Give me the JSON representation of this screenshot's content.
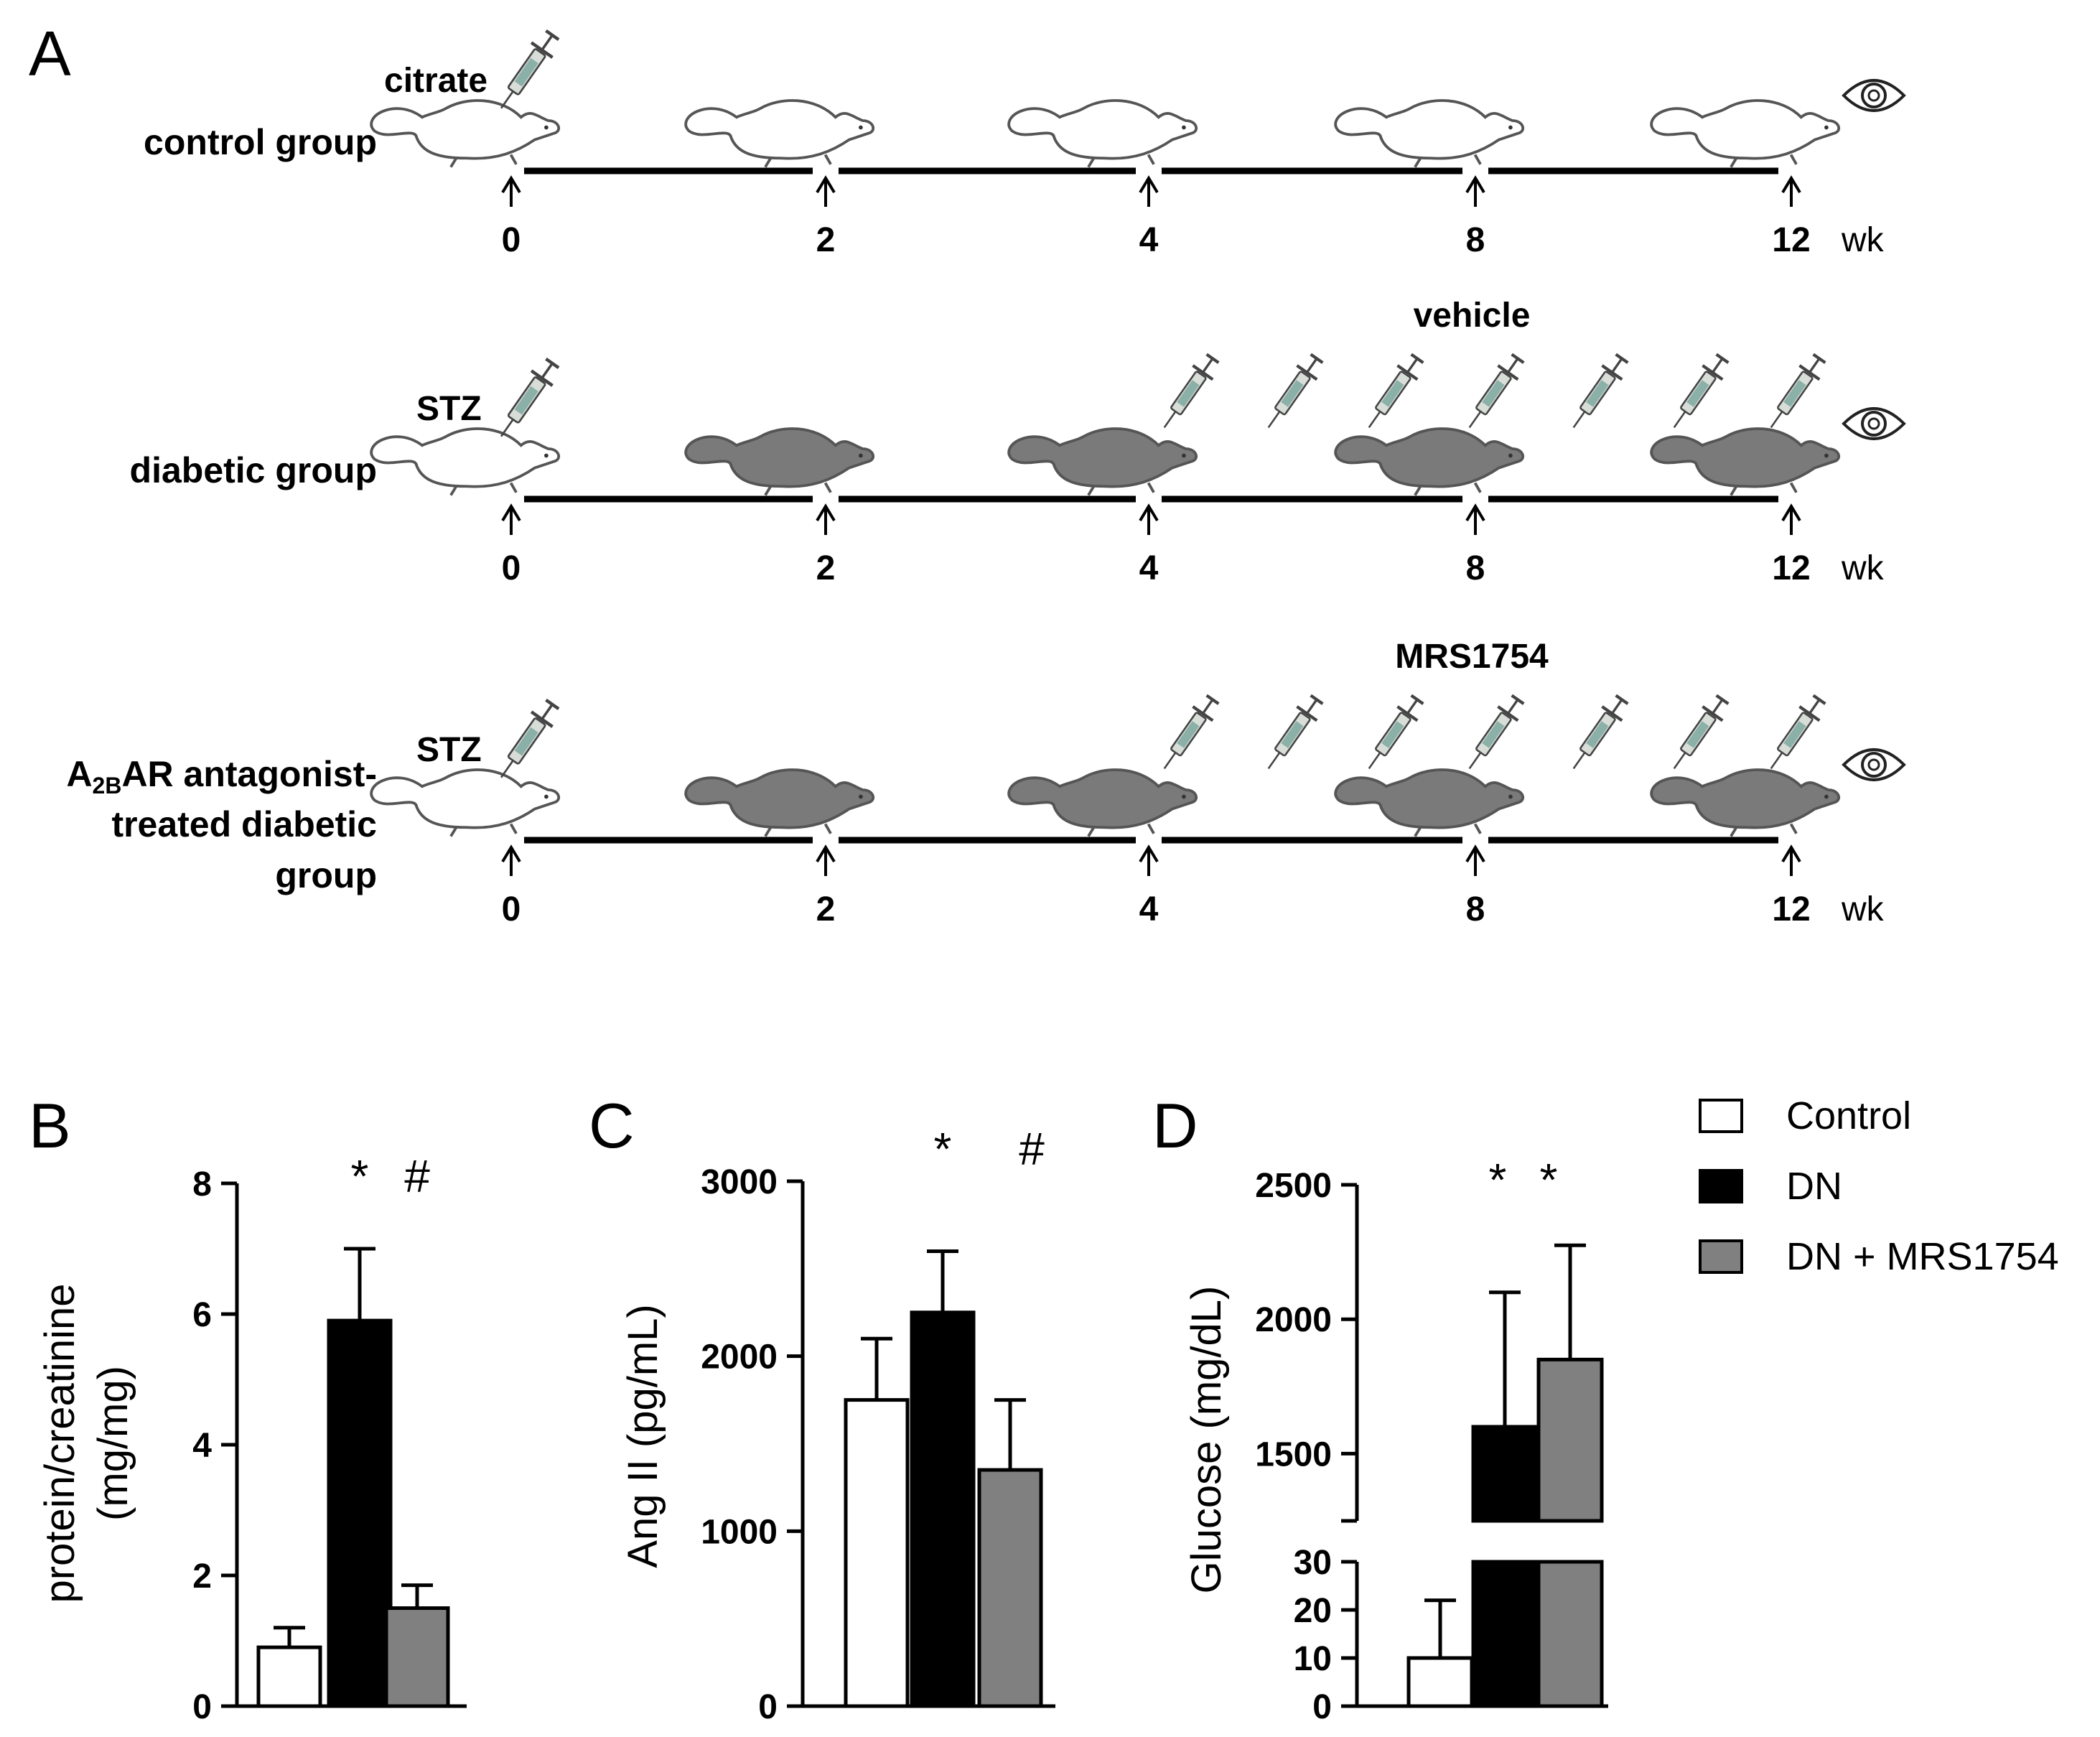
{
  "panel_a": {
    "letter": "A",
    "timepoints": [
      "0",
      "2",
      "4",
      "8",
      "12"
    ],
    "unit": "wk",
    "groups": [
      {
        "label_lines": [
          "control group"
        ],
        "injection_label": "citrate",
        "treatment_label": ""
      },
      {
        "label_lines": [
          "diabetic group"
        ],
        "injection_label": "STZ",
        "treatment_label": "vehicle"
      },
      {
        "label_lines": [
          "A",
          "2B",
          "AR antagonist-",
          "treated diabetic",
          "group"
        ],
        "injection_label": "STZ",
        "treatment_label": "MRS1754"
      }
    ]
  },
  "legend": {
    "items": [
      {
        "label": "Control",
        "color": "#ffffff"
      },
      {
        "label": "DN",
        "color": "#000000"
      },
      {
        "label": "DN + MRS1754",
        "color": "#808080"
      }
    ]
  },
  "chart_data": [
    {
      "panel": "B",
      "type": "bar",
      "ylabel_lines": [
        "protein/creatinine",
        "(mg/mg)"
      ],
      "categories": [
        "Control",
        "DN",
        "DN + MRS1754"
      ],
      "values": [
        0.9,
        5.9,
        1.5
      ],
      "errors": [
        0.3,
        1.1,
        0.35
      ],
      "significance": [
        "",
        "*",
        "#"
      ],
      "ylim": [
        0,
        8
      ],
      "yticks": [
        0,
        2,
        4,
        6,
        8
      ]
    },
    {
      "panel": "C",
      "type": "bar",
      "ylabel_lines": [
        "Ang II (pg/mL)"
      ],
      "categories": [
        "Control",
        "DN",
        "DN + MRS1754"
      ],
      "values": [
        1750,
        2250,
        1350
      ],
      "errors": [
        350,
        350,
        400
      ],
      "significance": [
        "",
        "*",
        "#"
      ],
      "ylim": [
        0,
        3000
      ],
      "yticks": [
        0,
        1000,
        2000,
        3000
      ]
    },
    {
      "panel": "D",
      "type": "bar",
      "ylabel_lines": [
        "Glucose (mg/dL)"
      ],
      "categories": [
        "Control",
        "DN",
        "DN + MRS1754"
      ],
      "values": [
        10,
        1600,
        1850
      ],
      "errors": [
        12,
        500,
        425
      ],
      "significance": [
        "",
        "*",
        "*"
      ],
      "broken_axis": true,
      "lower_range": [
        0,
        30
      ],
      "lower_ticks": [
        0,
        10,
        20,
        30
      ],
      "upper_range": [
        1250,
        2500
      ],
      "upper_ticks": [
        1500,
        2000,
        2500
      ]
    }
  ]
}
